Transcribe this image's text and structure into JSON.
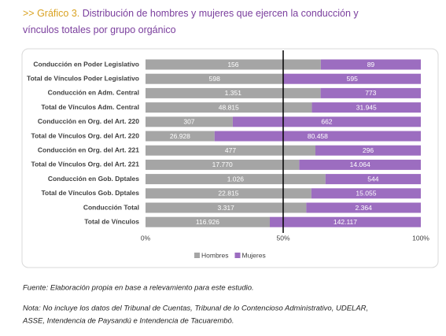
{
  "chart_data": {
    "type": "bar",
    "orientation": "horizontal",
    "stacked": "percent",
    "title_prefix": ">> Gráfico 3.",
    "title": "Distribución de hombres y mujeres que ejercen la conducción y vínculos totales por grupo orgánico",
    "categories": [
      "Conducción en Poder Legislativo",
      "Total de Vínculos Poder Legislativo",
      "Conducción en Adm. Central",
      "Total de Vínculos Adm. Central",
      "Conducción en Org. del Art. 220",
      "Total de Vínculos Org. del Art. 220",
      "Conducción en Org. del Art. 221",
      "Total de Vínculos Org. del Art. 221",
      "Conducción en  Gob. Dptales",
      "Total de Vínculos Gob. Dptales",
      "Conducción Total",
      "Total de Vínculos"
    ],
    "series": [
      {
        "name": "Hombres",
        "color": "#a5a5a5",
        "values": [
          156,
          598,
          1351,
          48815,
          307,
          26928,
          477,
          17770,
          1026,
          22815,
          3317,
          116926
        ],
        "value_labels": [
          "156",
          "598",
          "1.351",
          "48.815",
          "307",
          "26.928",
          "477",
          "17.770",
          "1.026",
          "22.815",
          "3.317",
          "116.926"
        ]
      },
      {
        "name": "Mujeres",
        "color": "#9c6dc0",
        "values": [
          89,
          595,
          773,
          31945,
          662,
          80458,
          296,
          14064,
          544,
          15055,
          2364,
          142117
        ],
        "value_labels": [
          "89",
          "595",
          "773",
          "31.945",
          "662",
          "80.458",
          "296",
          "14.064",
          "544",
          "15.055",
          "2.364",
          "142.117"
        ]
      }
    ],
    "xlim": [
      0,
      100
    ],
    "xticks": [
      {
        "value": 0,
        "label": "0%"
      },
      {
        "value": 50,
        "label": "50%"
      },
      {
        "value": 100,
        "label": "100%"
      }
    ],
    "reference_line": 50,
    "legend": "bottom",
    "source": "Fuente: Elaboración propia en base a relevamiento para este estudio.",
    "note": [
      "Nota: No incluye los datos del Tribunal de Cuentas, Tribunal de lo Contencioso Administrativo, UDELAR,",
      "ASSE, Intendencia de Paysandú e Intendencia de Tacuarembó."
    ]
  }
}
